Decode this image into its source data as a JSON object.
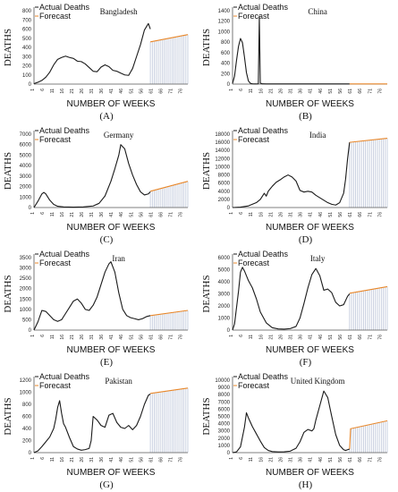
{
  "x_label": "NUMBER OF WEEKS",
  "y_label": "DEATHS",
  "legend": {
    "actual": "Actual Deaths",
    "forecast": "Forecast"
  },
  "colors": {
    "actual": "#1a1a1a",
    "forecast": "#e8872a",
    "bars": "#bcc5d8",
    "axis": "#555555"
  },
  "x_ticks": [
    "1",
    "6",
    "11",
    "16",
    "21",
    "26",
    "31",
    "36",
    "41",
    "46",
    "51",
    "56",
    "61",
    "66",
    "71",
    "76"
  ],
  "chart_data": [
    {
      "type": "line",
      "letter": "(A)",
      "title": "Bangladesh",
      "ylim": [
        0,
        800
      ],
      "yticks": [
        0,
        100,
        200,
        300,
        400,
        500,
        600,
        700,
        800
      ],
      "xmax": 79,
      "actual": {
        "x": [
          1,
          3,
          5,
          7,
          9,
          11,
          13,
          15,
          17,
          19,
          21,
          23,
          25,
          27,
          29,
          31,
          33,
          35,
          37,
          39,
          41,
          43,
          45,
          47,
          49,
          51,
          53,
          55,
          57,
          59,
          60
        ],
        "y": [
          5,
          20,
          40,
          75,
          130,
          210,
          270,
          290,
          305,
          290,
          280,
          250,
          245,
          220,
          180,
          140,
          135,
          185,
          210,
          190,
          150,
          140,
          120,
          100,
          95,
          170,
          300,
          430,
          590,
          660,
          600
        ]
      },
      "forecast": {
        "x": [
          60,
          79
        ],
        "y": [
          460,
          540
        ]
      }
    },
    {
      "type": "line",
      "letter": "(B)",
      "title": "China",
      "ylim": [
        0,
        1400
      ],
      "yticks": [
        0,
        200,
        400,
        600,
        800,
        1000,
        1200,
        1400
      ],
      "xmax": 79,
      "actual": {
        "x": [
          1,
          2,
          3,
          4,
          5,
          6,
          7,
          8,
          9,
          10,
          11,
          12,
          13,
          14,
          14.5,
          15,
          16,
          18,
          22,
          26,
          30,
          34,
          38,
          42,
          46,
          50,
          54,
          58,
          60
        ],
        "y": [
          10,
          150,
          450,
          720,
          870,
          790,
          520,
          220,
          60,
          15,
          5,
          3,
          3,
          5,
          1290,
          20,
          5,
          3,
          3,
          3,
          3,
          3,
          3,
          3,
          3,
          3,
          3,
          3,
          3
        ]
      },
      "forecast": {
        "x": [
          60,
          79
        ],
        "y": [
          3,
          3
        ]
      }
    },
    {
      "type": "line",
      "letter": "(C)",
      "title": "Germany",
      "ylim": [
        0,
        7000
      ],
      "yticks": [
        0,
        1000,
        2000,
        3000,
        4000,
        5000,
        6000,
        7000
      ],
      "xmax": 79,
      "actual": {
        "x": [
          1,
          3,
          5,
          6,
          7,
          9,
          11,
          13,
          16,
          21,
          26,
          31,
          34,
          37,
          40,
          42,
          44,
          45,
          47,
          49,
          51,
          53,
          55,
          57,
          59,
          60
        ],
        "y": [
          0,
          600,
          1300,
          1450,
          1300,
          700,
          300,
          120,
          60,
          40,
          60,
          150,
          400,
          1100,
          2500,
          3700,
          5000,
          6000,
          5600,
          4200,
          3100,
          2200,
          1500,
          1200,
          1300,
          1500
        ]
      },
      "forecast": {
        "x": [
          60,
          79
        ],
        "y": [
          1550,
          2500
        ]
      }
    },
    {
      "type": "line",
      "letter": "(D)",
      "title": "India",
      "ylim": [
        0,
        18000
      ],
      "yticks": [
        0,
        2000,
        4000,
        6000,
        8000,
        10000,
        12000,
        14000,
        16000,
        18000
      ],
      "xmax": 79,
      "actual": {
        "x": [
          1,
          5,
          9,
          13,
          15,
          17,
          18,
          19,
          21,
          23,
          25,
          27,
          29,
          31,
          33,
          35,
          37,
          39,
          41,
          43,
          45,
          47,
          49,
          51,
          53,
          55,
          57,
          58,
          59,
          60
        ],
        "y": [
          0,
          100,
          400,
          1200,
          2000,
          3500,
          2800,
          4000,
          5200,
          6200,
          6800,
          7500,
          8000,
          7500,
          6500,
          4200,
          3800,
          4000,
          3800,
          3000,
          2400,
          1800,
          1200,
          800,
          600,
          1200,
          3500,
          7000,
          12000,
          16000
        ]
      },
      "forecast": {
        "x": [
          60,
          79
        ],
        "y": [
          16000,
          17000
        ]
      }
    },
    {
      "type": "line",
      "letter": "(E)",
      "title": "Iran",
      "ylim": [
        0,
        3500
      ],
      "yticks": [
        0,
        500,
        1000,
        1500,
        2000,
        2500,
        3000,
        3500
      ],
      "xmax": 79,
      "actual": {
        "x": [
          1,
          3,
          5,
          7,
          9,
          11,
          13,
          15,
          17,
          19,
          21,
          23,
          25,
          27,
          29,
          31,
          33,
          35,
          37,
          39,
          40,
          42,
          44,
          46,
          48,
          50,
          52,
          54,
          56,
          58,
          60
        ],
        "y": [
          0,
          400,
          950,
          900,
          700,
          500,
          420,
          500,
          800,
          1100,
          1400,
          1500,
          1300,
          1000,
          950,
          1200,
          1600,
          2200,
          2800,
          3200,
          3300,
          2800,
          1800,
          1000,
          700,
          600,
          550,
          500,
          550,
          650,
          700
        ]
      },
      "forecast": {
        "x": [
          60,
          79
        ],
        "y": [
          700,
          950
        ]
      }
    },
    {
      "type": "line",
      "letter": "(F)",
      "title": "Italy",
      "ylim": [
        0,
        6000
      ],
      "yticks": [
        0,
        1000,
        2000,
        3000,
        4000,
        5000,
        6000
      ],
      "xmax": 79,
      "actual": {
        "x": [
          1,
          2,
          4,
          5,
          6,
          7,
          9,
          11,
          13,
          15,
          18,
          21,
          24,
          27,
          30,
          33,
          35,
          37,
          39,
          41,
          43,
          45,
          47,
          49,
          51,
          53,
          55,
          57,
          59,
          60
        ],
        "y": [
          0,
          500,
          3200,
          4800,
          5200,
          4900,
          4100,
          3500,
          2600,
          1500,
          600,
          200,
          100,
          80,
          120,
          300,
          1000,
          2200,
          3500,
          4600,
          5100,
          4500,
          3300,
          3400,
          3100,
          2300,
          2000,
          2100,
          2800,
          3000
        ]
      },
      "forecast": {
        "x": [
          60,
          79
        ],
        "y": [
          3050,
          3600
        ]
      }
    },
    {
      "type": "line",
      "letter": "(G)",
      "title": "Pakistan",
      "ylim": [
        0,
        1200
      ],
      "yticks": [
        0,
        200,
        400,
        600,
        800,
        1000,
        1200
      ],
      "xmax": 79,
      "actual": {
        "x": [
          1,
          3,
          5,
          7,
          9,
          11,
          12,
          13,
          14,
          15,
          16,
          17,
          19,
          21,
          23,
          25,
          27,
          29,
          30,
          31,
          33,
          35,
          37,
          39,
          41,
          43,
          45,
          47,
          49,
          51,
          53,
          55,
          57,
          59,
          60
        ],
        "y": [
          0,
          30,
          100,
          180,
          260,
          400,
          550,
          750,
          860,
          650,
          480,
          420,
          250,
          100,
          60,
          40,
          50,
          70,
          200,
          600,
          540,
          450,
          420,
          620,
          650,
          500,
          420,
          400,
          450,
          380,
          450,
          600,
          800,
          950,
          970
        ]
      },
      "forecast": {
        "x": [
          60,
          79
        ],
        "y": [
          980,
          1070
        ]
      }
    },
    {
      "type": "line",
      "letter": "(H)",
      "title": "United Kingdom",
      "ylim": [
        0,
        10000
      ],
      "yticks": [
        0,
        1000,
        2000,
        3000,
        4000,
        5000,
        6000,
        7000,
        8000,
        9000,
        10000
      ],
      "xmax": 79,
      "actual": {
        "x": [
          1,
          3,
          5,
          7,
          8,
          9,
          11,
          13,
          15,
          17,
          19,
          21,
          24,
          27,
          30,
          33,
          35,
          37,
          39,
          41,
          42,
          43,
          45,
          47,
          49,
          51,
          53,
          55,
          57,
          58,
          59,
          60
        ],
        "y": [
          0,
          100,
          800,
          3500,
          5500,
          4800,
          3600,
          2600,
          1600,
          700,
          300,
          150,
          100,
          120,
          200,
          600,
          1500,
          2800,
          3200,
          3000,
          3300,
          4500,
          6500,
          8500,
          7600,
          5000,
          2500,
          1000,
          400,
          300,
          400,
          500
        ]
      },
      "forecast": {
        "x": [
          60,
          60.5,
          79
        ],
        "y": [
          500,
          3300,
          4400
        ]
      }
    }
  ]
}
